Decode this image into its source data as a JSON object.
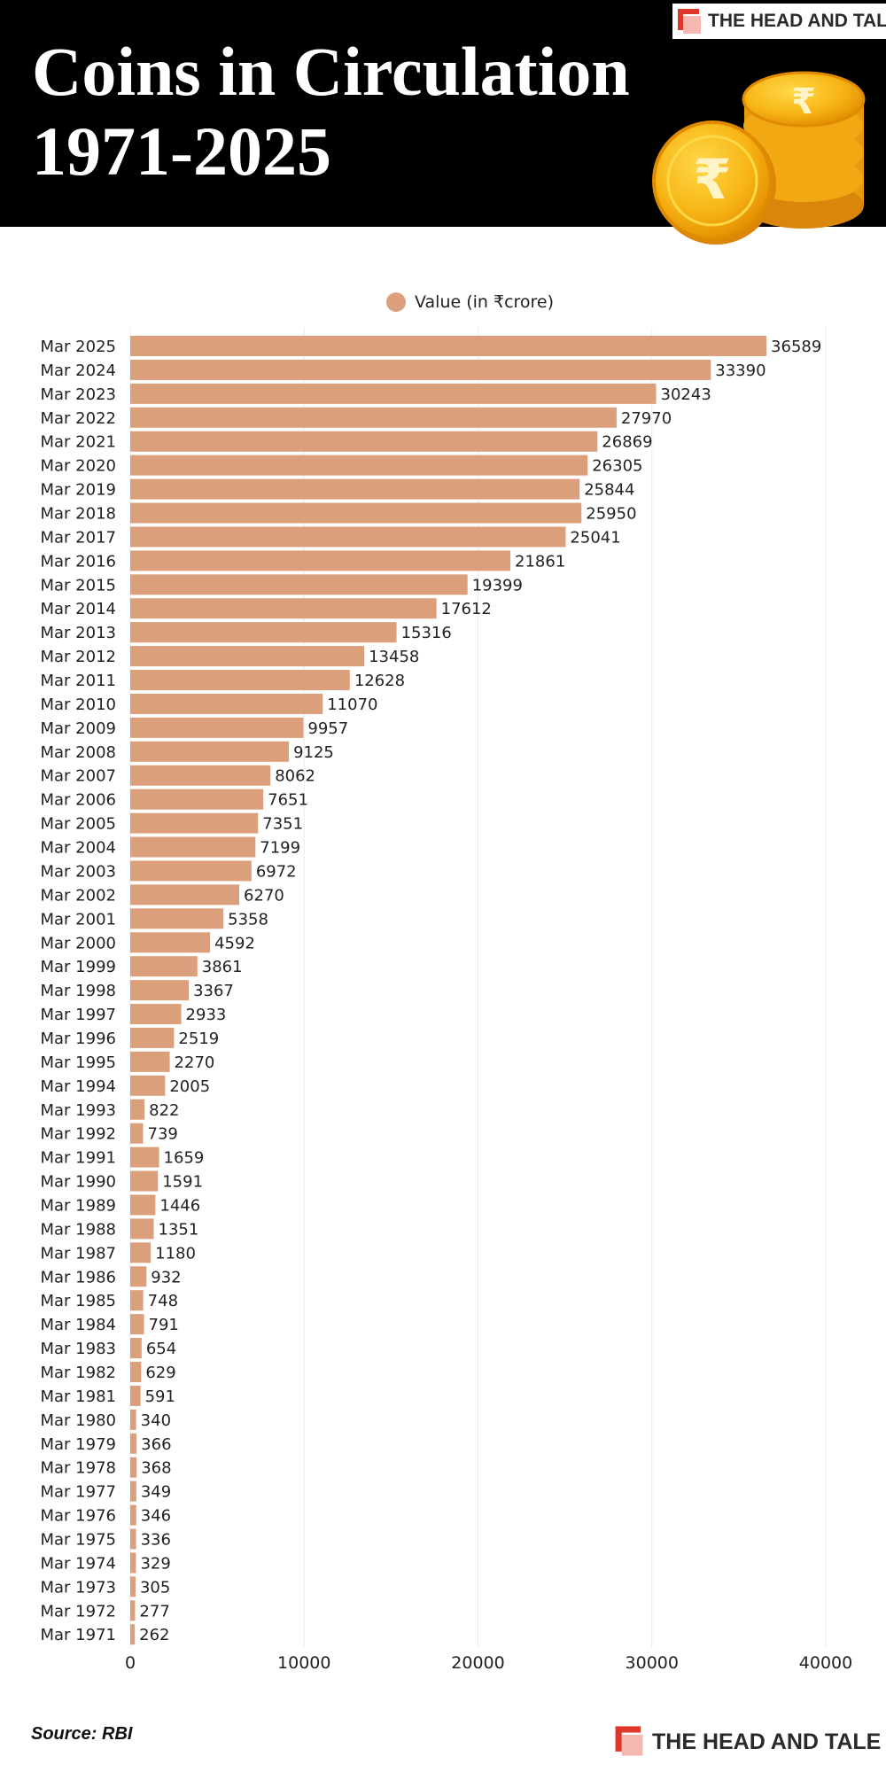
{
  "header": {
    "title_line1": "Coins in Circulation",
    "title_line2": "1971-2025",
    "brand": "THE HEAD AND TALE",
    "coin_symbol": "₹"
  },
  "colors": {
    "header_bg": "#000000",
    "bar": "#dc9f7c",
    "brand_red": "#e0362b",
    "brand_pink": "#f5b8b0",
    "coin_gold": "#f7b514",
    "coin_dark": "#e08a00"
  },
  "footer": {
    "source": "Source: RBI",
    "brand": "THE HEAD AND TALE"
  },
  "chart_data": {
    "type": "bar",
    "orientation": "horizontal",
    "title": "",
    "xlabel": "",
    "ylabel": "",
    "legend": {
      "label": "Value (in ₹crore)",
      "placement": "top-center"
    },
    "xlim": [
      0,
      40000
    ],
    "xticks": [
      0,
      10000,
      20000,
      30000,
      40000
    ],
    "grid": true,
    "data_labels": true,
    "categories": [
      "Mar 2025",
      "Mar 2024",
      "Mar 2023",
      "Mar 2022",
      "Mar 2021",
      "Mar 2020",
      "Mar 2019",
      "Mar 2018",
      "Mar 2017",
      "Mar 2016",
      "Mar 2015",
      "Mar 2014",
      "Mar 2013",
      "Mar 2012",
      "Mar 2011",
      "Mar 2010",
      "Mar 2009",
      "Mar 2008",
      "Mar 2007",
      "Mar 2006",
      "Mar 2005",
      "Mar 2004",
      "Mar 2003",
      "Mar 2002",
      "Mar 2001",
      "Mar 2000",
      "Mar 1999",
      "Mar 1998",
      "Mar 1997",
      "Mar 1996",
      "Mar 1995",
      "Mar 1994",
      "Mar 1993",
      "Mar 1992",
      "Mar 1991",
      "Mar 1990",
      "Mar 1989",
      "Mar 1988",
      "Mar 1987",
      "Mar 1986",
      "Mar 1985",
      "Mar 1984",
      "Mar 1983",
      "Mar 1982",
      "Mar 1981",
      "Mar 1980",
      "Mar 1979",
      "Mar 1978",
      "Mar 1977",
      "Mar 1976",
      "Mar 1975",
      "Mar 1974",
      "Mar 1973",
      "Mar 1972",
      "Mar 1971"
    ],
    "values": [
      36589,
      33390,
      30243,
      27970,
      26869,
      26305,
      25844,
      25950,
      25041,
      21861,
      19399,
      17612,
      15316,
      13458,
      12628,
      11070,
      9957,
      9125,
      8062,
      7651,
      7351,
      7199,
      6972,
      6270,
      5358,
      4592,
      3861,
      3367,
      2933,
      2519,
      2270,
      2005,
      822,
      739,
      1659,
      1591,
      1446,
      1351,
      1180,
      932,
      748,
      791,
      654,
      629,
      591,
      340,
      366,
      368,
      349,
      346,
      336,
      329,
      305,
      277,
      262
    ]
  }
}
